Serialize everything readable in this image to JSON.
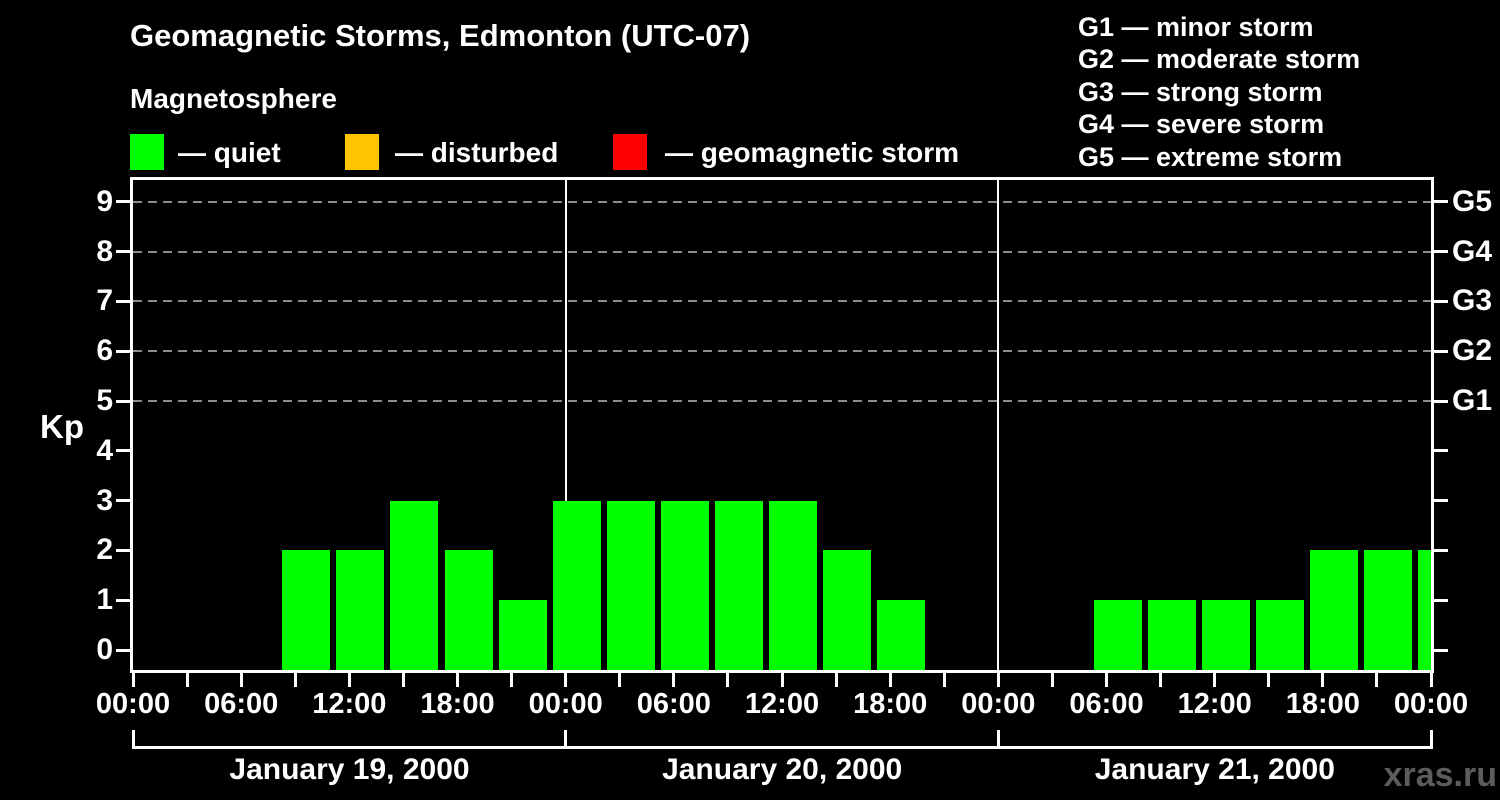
{
  "title": "Geomagnetic Storms, Edmonton (UTC-07)",
  "subtitle": "Magnetosphere",
  "legend": {
    "items": [
      {
        "name": "quiet",
        "label": "— quiet",
        "color": "#00ff00"
      },
      {
        "name": "disturbed",
        "label": "— disturbed",
        "color": "#ffc400"
      },
      {
        "name": "geomagnetic-storm",
        "label": "— geomagnetic storm",
        "color": "#ff0000"
      }
    ]
  },
  "storm_scale_legend": [
    "G1 — minor storm",
    "G2 — moderate storm",
    "G3 — strong storm",
    "G4 — severe storm",
    "G5 — extreme storm"
  ],
  "watermark": "xras.ru",
  "chart_data": {
    "type": "bar",
    "ylabel": "Kp",
    "ylim": [
      0,
      9
    ],
    "y_ticks": [
      0,
      1,
      2,
      3,
      4,
      5,
      6,
      7,
      8,
      9
    ],
    "gridlines_at_kp": [
      5,
      6,
      7,
      8,
      9
    ],
    "right_axis": [
      {
        "label": "G5",
        "kp": 9
      },
      {
        "label": "G4",
        "kp": 8
      },
      {
        "label": "G3",
        "kp": 7
      },
      {
        "label": "G2",
        "kp": 6
      },
      {
        "label": "G1",
        "kp": 5
      }
    ],
    "bin_duration_hours": 3,
    "bin_start_hours": [
      0,
      3,
      6,
      9,
      12,
      15,
      18,
      21
    ],
    "x_hour_labels": [
      "00:00",
      "06:00",
      "12:00",
      "18:00"
    ],
    "x_final_label": "00:00",
    "days": [
      {
        "date": "January 19, 2000",
        "values": [
          0,
          0,
          0,
          2,
          2,
          3,
          2,
          1
        ]
      },
      {
        "date": "January 20, 2000",
        "values": [
          3,
          3,
          3,
          3,
          3,
          2,
          1,
          0
        ]
      },
      {
        "date": "January 21, 2000",
        "values": [
          0,
          0,
          1,
          1,
          1,
          1,
          2,
          2
        ]
      }
    ],
    "partial_next_bar_kp": 2,
    "bar_color": "#00ff00",
    "grid_color": "#8c8c8c",
    "axis_color": "#ffffff",
    "background_color": "#000000"
  }
}
